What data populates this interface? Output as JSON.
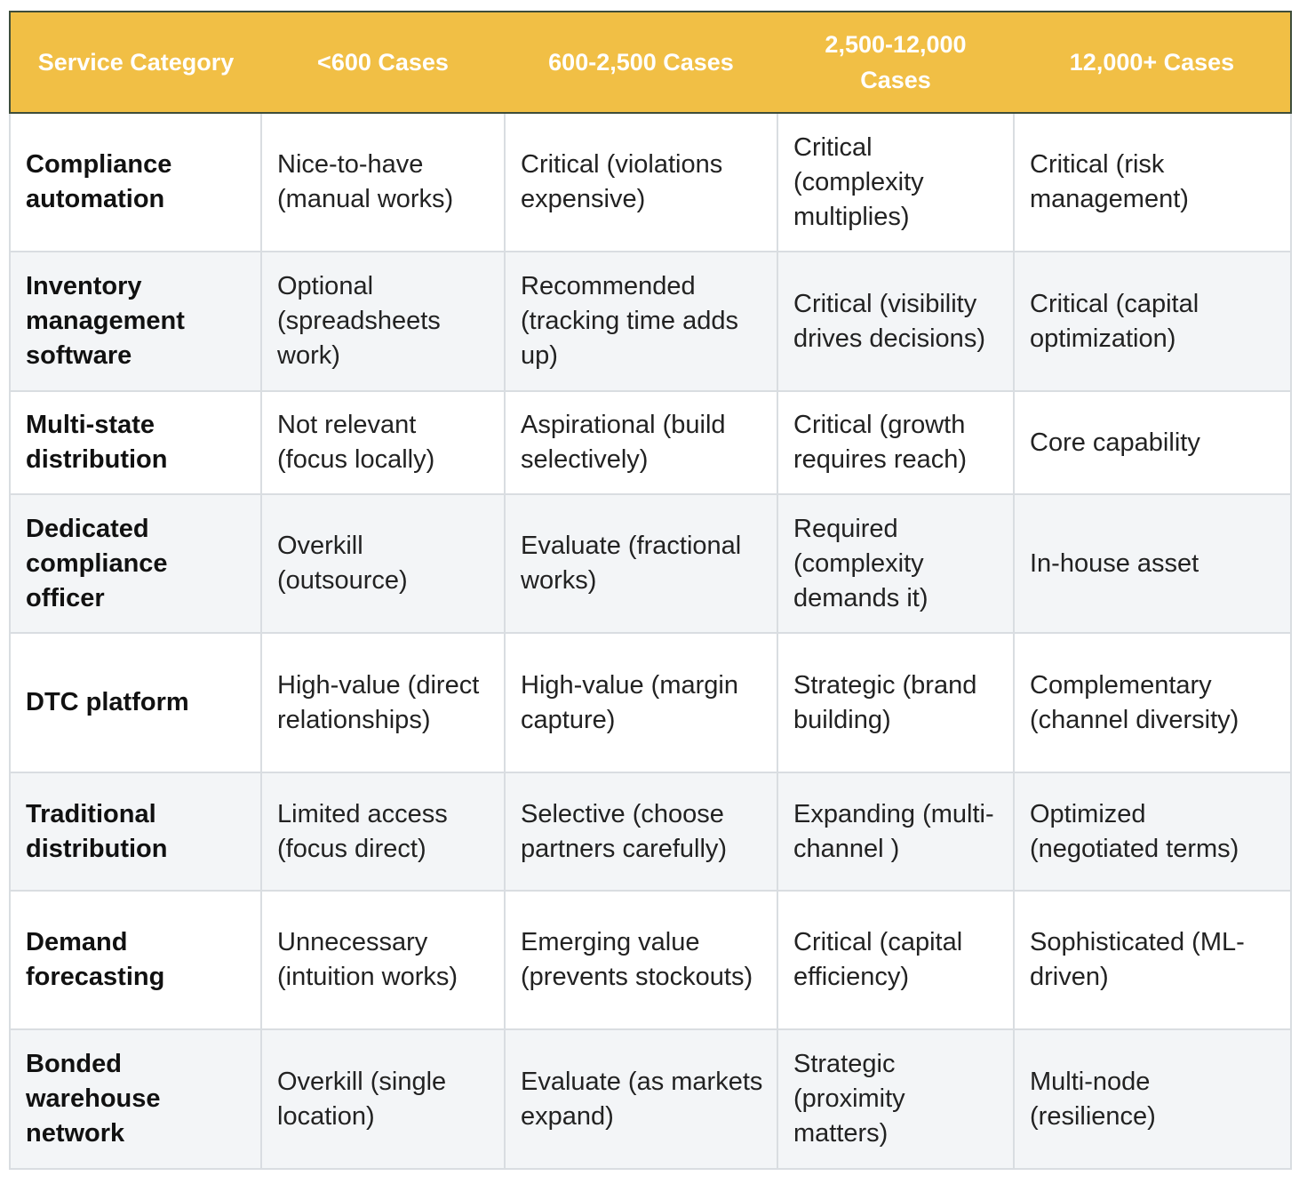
{
  "table": {
    "columns": [
      "Service Category",
      "<600 Cases",
      "600-2,500 Cases",
      "2,500-12,000 Cases",
      "12,000+ Cases"
    ],
    "rows": [
      [
        "Compliance automation",
        "Nice-to-have (manual works)",
        "Critical (violations expensive)",
        "Critical (complexity multiplies)",
        "Critical (risk management)"
      ],
      [
        "Inventory management software",
        "Optional (spreadsheets work)",
        "Recommended (tracking time adds up)",
        "Critical (visibility drives decisions)",
        "Critical (capital optimization)"
      ],
      [
        "Multi-state distribution",
        "Not relevant (focus locally)",
        "Aspirational (build selectively)",
        "Critical (growth requires reach)",
        "Core capability"
      ],
      [
        "Dedicated compliance officer",
        "Overkill (outsource)",
        "Evaluate (fractional works)",
        "Required (complexity demands it)",
        "In-house asset"
      ],
      [
        "DTC platform",
        "High-value (direct relationships)",
        "High-value (margin capture)",
        "Strategic (brand building)",
        "Complementary (channel diversity)"
      ],
      [
        "Traditional distribution",
        "Limited access (focus direct)",
        "Selective (choose partners carefully)",
        "Expanding (multi-channel )",
        "Optimized (negotiated terms)"
      ],
      [
        "Demand forecasting",
        "Unnecessary (intuition works)",
        "Emerging value (prevents stockouts)",
        "Critical (capital efficiency)",
        "Sophisticated (ML-driven)"
      ],
      [
        "Bonded warehouse network",
        "Overkill (single location)",
        "Evaluate (as markets expand)",
        "Strategic (proximity matters)",
        "Multi-node (resilience)"
      ]
    ]
  }
}
